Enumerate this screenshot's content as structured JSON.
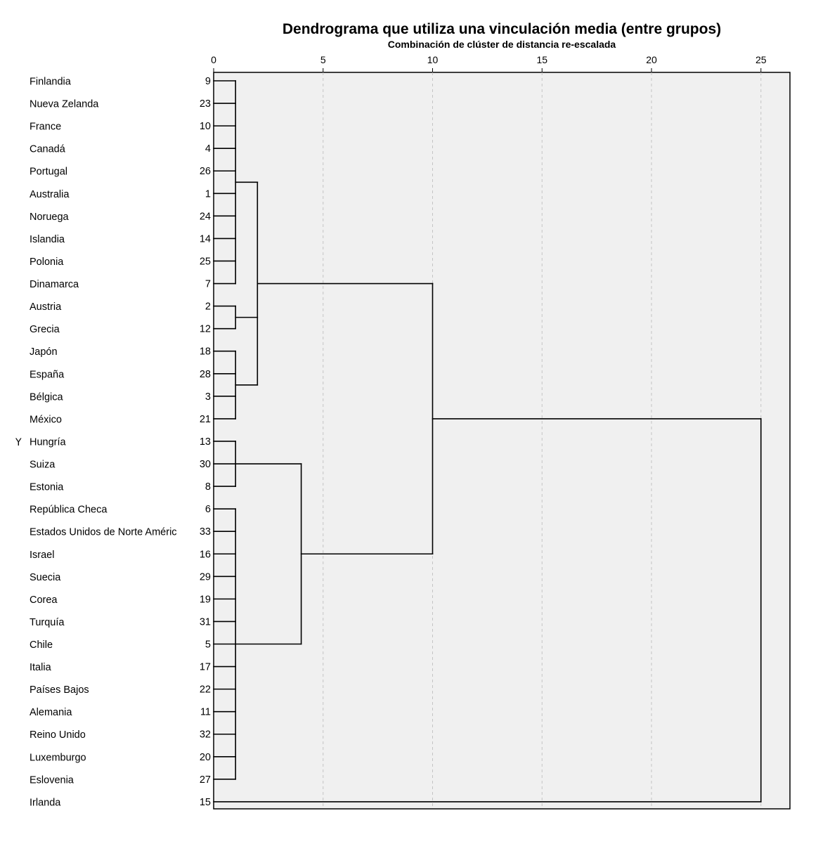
{
  "chart_data": {
    "type": "dendrogram",
    "title": "Dendrograma que utiliza una vinculación media (entre grupos)",
    "subtitle": "Combinación de clúster de distancia re-escalada",
    "ylabel": "Y",
    "x_ticks": [
      "0",
      "5",
      "10",
      "15",
      "20",
      "25"
    ],
    "xlim": [
      0,
      26.3
    ],
    "grid": "vertical dashed",
    "rows": [
      {
        "label": "Finlandia",
        "case": "9"
      },
      {
        "label": "Nueva Zelanda",
        "case": "23"
      },
      {
        "label": "France",
        "case": "10"
      },
      {
        "label": "Canadá",
        "case": "4"
      },
      {
        "label": "Portugal",
        "case": "26"
      },
      {
        "label": "Australia",
        "case": "1"
      },
      {
        "label": "Noruega",
        "case": "24"
      },
      {
        "label": "Islandia",
        "case": "14"
      },
      {
        "label": "Polonia",
        "case": "25"
      },
      {
        "label": "Dinamarca",
        "case": "7"
      },
      {
        "label": "Austria",
        "case": "2"
      },
      {
        "label": "Grecia",
        "case": "12"
      },
      {
        "label": "Japón",
        "case": "18"
      },
      {
        "label": "España",
        "case": "28"
      },
      {
        "label": "Bélgica",
        "case": "3"
      },
      {
        "label": "México",
        "case": "21"
      },
      {
        "label": "Hungría",
        "case": "13"
      },
      {
        "label": "Suiza",
        "case": "30"
      },
      {
        "label": "Estonia",
        "case": "8"
      },
      {
        "label": "República Checa",
        "case": "6"
      },
      {
        "label": "Estados Unidos de Norte Améric",
        "case": "33"
      },
      {
        "label": "Israel",
        "case": "16"
      },
      {
        "label": "Suecia",
        "case": "29"
      },
      {
        "label": "Corea",
        "case": "19"
      },
      {
        "label": "Turquía",
        "case": "31"
      },
      {
        "label": "Chile",
        "case": "5"
      },
      {
        "label": "Italia",
        "case": "17"
      },
      {
        "label": "Países Bajos",
        "case": "22"
      },
      {
        "label": "Alemania",
        "case": "11"
      },
      {
        "label": "Reino Unido",
        "case": "32"
      },
      {
        "label": "Luxemburgo",
        "case": "20"
      },
      {
        "label": "Eslovenia",
        "case": "27"
      },
      {
        "label": "Irlanda",
        "case": "15"
      }
    ],
    "merges": [
      {
        "name": "A",
        "children": [
          0,
          1,
          2,
          3,
          4,
          5,
          6,
          7,
          8,
          9
        ],
        "height": 1
      },
      {
        "name": "B",
        "children": [
          10,
          11
        ],
        "height": 1
      },
      {
        "name": "C",
        "children": [
          12,
          13,
          14,
          15
        ],
        "height": 1
      },
      {
        "name": "D",
        "children": [
          "A",
          "B",
          "C"
        ],
        "height": 2
      },
      {
        "name": "E",
        "children": [
          16,
          17,
          18
        ],
        "height": 1
      },
      {
        "name": "F",
        "children": [
          19,
          20,
          21,
          22,
          23,
          24,
          25,
          26,
          27,
          28,
          29,
          30,
          31
        ],
        "height": 1
      },
      {
        "name": "G",
        "children": [
          "E",
          "F"
        ],
        "height": 4
      },
      {
        "name": "H",
        "children": [
          "D",
          "G"
        ],
        "height": 10
      },
      {
        "name": "I",
        "children": [
          "H",
          32
        ],
        "height": 25
      }
    ]
  }
}
